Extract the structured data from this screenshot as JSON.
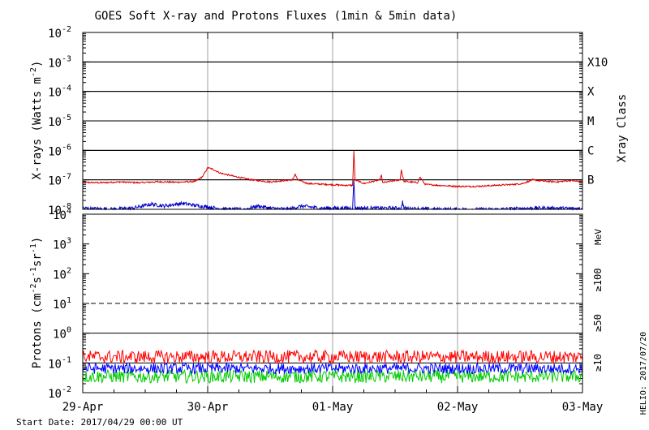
{
  "title": "GOES Soft X-ray and Protons Fluxes   (1min & 5min data)",
  "start_date": "Start Date: 2017/04/29 00:00 UT",
  "credit": "HELIO: 2017/07/20",
  "colors": {
    "background": "#ffffff",
    "grid": "#a0a0a0",
    "xray_long": "#dd0000",
    "xray_short": "#0000cc",
    "p10": "#ff0000",
    "p50": "#0000ff",
    "p100": "#00cc00"
  },
  "chart_data": [
    {
      "type": "line",
      "title": "GOES Soft X-ray and Protons Fluxes   (1min & 5min data)",
      "ylabel": "X-rays (Watts m-2)",
      "y_scale": "log",
      "ylim": [
        1e-08,
        0.01
      ],
      "y_ticks": [
        {
          "base": "10",
          "exp": "-8"
        },
        {
          "base": "10",
          "exp": "-7"
        },
        {
          "base": "10",
          "exp": "-6"
        },
        {
          "base": "10",
          "exp": "-5"
        },
        {
          "base": "10",
          "exp": "-4"
        },
        {
          "base": "10",
          "exp": "-3"
        },
        {
          "base": "10",
          "exp": "-2"
        }
      ],
      "x_ticks": [
        "29-Apr",
        "30-Apr",
        "01-May",
        "02-May",
        "03-May"
      ],
      "xlim_days": [
        0,
        4
      ],
      "right_axis_label": "Xray Class",
      "xray_classes": [
        {
          "label": "B",
          "value": 1e-07
        },
        {
          "label": "C",
          "value": 1e-06
        },
        {
          "label": "M",
          "value": 1e-05
        },
        {
          "label": "X",
          "value": 0.0001
        },
        {
          "label": "X10",
          "value": 0.001
        }
      ],
      "series": [
        {
          "key": "long",
          "points": [
            [
              0.0,
              8.2e-08
            ],
            [
              0.15,
              8e-08
            ],
            [
              0.3,
              8.5e-08
            ],
            [
              0.45,
              8e-08
            ],
            [
              0.6,
              8.6e-08
            ],
            [
              0.75,
              8.3e-08
            ],
            [
              0.9,
              8.8e-08
            ],
            [
              0.96,
              1.3e-07
            ],
            [
              1.0,
              2.6e-07
            ],
            [
              1.04,
              2.3e-07
            ],
            [
              1.1,
              1.7e-07
            ],
            [
              1.2,
              1.35e-07
            ],
            [
              1.35,
              1e-07
            ],
            [
              1.5,
              8.5e-08
            ],
            [
              1.68,
              1e-07
            ],
            [
              1.7,
              1.6e-07
            ],
            [
              1.72,
              1e-07
            ],
            [
              1.8,
              7.5e-08
            ],
            [
              1.95,
              7e-08
            ],
            [
              2.1,
              6.5e-08
            ],
            [
              2.16,
              6.5e-08
            ],
            [
              2.17,
              9.5e-07
            ],
            [
              2.18,
              1e-07
            ],
            [
              2.25,
              7.5e-08
            ],
            [
              2.38,
              1e-07
            ],
            [
              2.39,
              1.5e-07
            ],
            [
              2.4,
              8e-08
            ],
            [
              2.54,
              1e-07
            ],
            [
              2.55,
              2.2e-07
            ],
            [
              2.57,
              9e-08
            ],
            [
              2.68,
              8e-08
            ],
            [
              2.7,
              1.25e-07
            ],
            [
              2.74,
              7e-08
            ],
            [
              2.85,
              6.5e-08
            ],
            [
              3.0,
              6e-08
            ],
            [
              3.15,
              6e-08
            ],
            [
              3.3,
              6.5e-08
            ],
            [
              3.45,
              7e-08
            ],
            [
              3.52,
              7.5e-08
            ],
            [
              3.6,
              1e-07
            ],
            [
              3.7,
              9e-08
            ],
            [
              3.8,
              8.5e-08
            ],
            [
              3.9,
              9.5e-08
            ],
            [
              4.0,
              8.5e-08
            ]
          ]
        },
        {
          "key": "short",
          "points": [
            [
              0.0,
              1.1e-08
            ],
            [
              0.2,
              1e-08
            ],
            [
              0.4,
              1.1e-08
            ],
            [
              0.55,
              1.5e-08
            ],
            [
              0.65,
              1.3e-08
            ],
            [
              0.8,
              1.6e-08
            ],
            [
              0.93,
              1.3e-08
            ],
            [
              1.0,
              1.2e-08
            ],
            [
              1.15,
              1e-08
            ],
            [
              1.3,
              1e-08
            ],
            [
              1.4,
              1.3e-08
            ],
            [
              1.5,
              1.1e-08
            ],
            [
              1.65,
              1e-08
            ],
            [
              1.75,
              1.3e-08
            ],
            [
              1.9,
              1.1e-08
            ],
            [
              2.1,
              1.1e-08
            ],
            [
              2.16,
              1.1e-08
            ],
            [
              2.17,
              1e-07
            ],
            [
              2.18,
              1.1e-08
            ],
            [
              2.4,
              1.1e-08
            ],
            [
              2.55,
              1.1e-08
            ],
            [
              2.56,
              1.9e-08
            ],
            [
              2.57,
              1.1e-08
            ],
            [
              2.8,
              1e-08
            ],
            [
              3.0,
              1e-08
            ],
            [
              3.3,
              1e-08
            ],
            [
              3.6,
              1.1e-08
            ],
            [
              3.8,
              1.1e-08
            ],
            [
              4.0,
              1.05e-08
            ]
          ]
        }
      ]
    },
    {
      "type": "line",
      "ylabel": "Protons (cm-2 s-1 sr-1)",
      "y_scale": "log",
      "ylim": [
        0.01,
        10000
      ],
      "y_ticks": [
        {
          "base": "10",
          "exp": "-2"
        },
        {
          "base": "10",
          "exp": "-1"
        },
        {
          "base": "10",
          "exp": "0"
        },
        {
          "base": "10",
          "exp": "1"
        },
        {
          "base": "10",
          "exp": "2"
        },
        {
          "base": "10",
          "exp": "3"
        },
        {
          "base": "10",
          "exp": "4"
        }
      ],
      "threshold": 10,
      "unit_label": "MeV",
      "series": [
        {
          "key": "p100",
          "name": "≥100",
          "level": 0.035
        },
        {
          "key": "p50",
          "name": "≥50",
          "level": 0.065
        },
        {
          "key": "p10",
          "name": "≥10",
          "level": 0.16
        }
      ]
    }
  ]
}
